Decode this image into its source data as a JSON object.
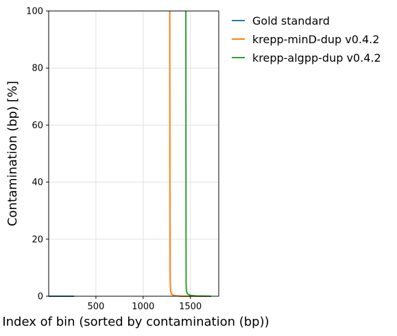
{
  "chart_data": {
    "type": "line",
    "title": "",
    "xlabel": "Index of bin (sorted by contamination (bp))",
    "ylabel": "Contamination (bp) [%]",
    "xlim": [
      0,
      1800
    ],
    "ylim": [
      0,
      100
    ],
    "xticks": [
      500,
      1000,
      1500
    ],
    "yticks": [
      0,
      20,
      40,
      60,
      80,
      100
    ],
    "grid": true,
    "legend_position": "outside-top-right",
    "series": [
      {
        "name": "Gold standard",
        "color": "#1f77b4",
        "points": [
          [
            0,
            0
          ],
          [
            270,
            0
          ]
        ]
      },
      {
        "name": "krepp-minD-dup v0.4.2",
        "color": "#ff7f0e",
        "points": [
          [
            1700,
            0
          ],
          [
            1400,
            0
          ],
          [
            1330,
            0.2
          ],
          [
            1300,
            0.7
          ],
          [
            1290,
            2
          ],
          [
            1286,
            6
          ],
          [
            1284,
            20
          ],
          [
            1283,
            50
          ],
          [
            1282,
            100
          ]
        ]
      },
      {
        "name": "krepp-algpp-dup v0.4.2",
        "color": "#2ca02c",
        "points": [
          [
            1720,
            0
          ],
          [
            1560,
            0.1
          ],
          [
            1500,
            0.3
          ],
          [
            1470,
            0.8
          ],
          [
            1460,
            1.5
          ],
          [
            1456,
            3
          ],
          [
            1455,
            5
          ],
          [
            1454,
            20
          ],
          [
            1453,
            50
          ],
          [
            1452,
            100
          ]
        ]
      }
    ]
  }
}
